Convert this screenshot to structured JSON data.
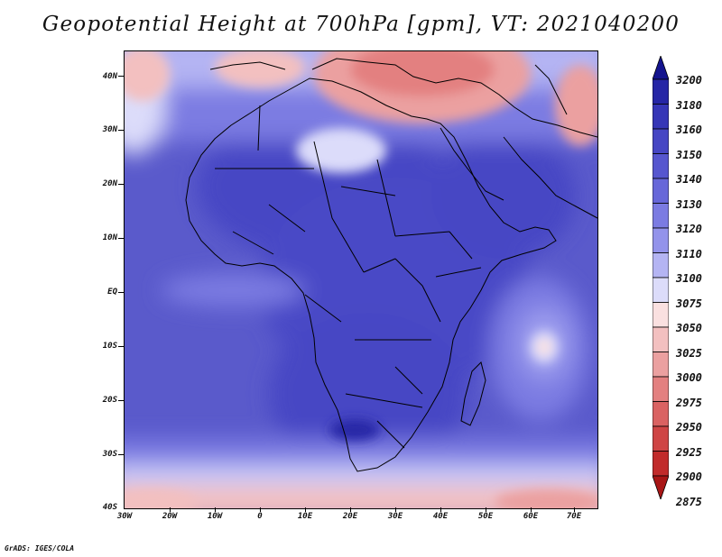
{
  "title": "Geopotential Height at 700hPa [gpm], VT: 2021040200",
  "credit": "GrADS: IGES/COLA",
  "map": {
    "lat_labels": [
      "40N",
      "30N",
      "20N",
      "10N",
      "EQ",
      "10S",
      "20S",
      "30S",
      "40S"
    ],
    "lon_labels": [
      "30W",
      "20W",
      "10W",
      "0",
      "10E",
      "20E",
      "30E",
      "40E",
      "50E",
      "60E",
      "70E"
    ],
    "extent": {
      "lon_min": -30,
      "lon_max": 75,
      "lat_min": -40,
      "lat_max": 44
    }
  },
  "colorbar": {
    "levels": [
      "3200",
      "3180",
      "3160",
      "3150",
      "3140",
      "3130",
      "3120",
      "3110",
      "3100",
      "3075",
      "3050",
      "3025",
      "3000",
      "2975",
      "2950",
      "2925",
      "2900",
      "2875"
    ],
    "colors": [
      "#14148e",
      "#2626a6",
      "#3636b7",
      "#4646c4",
      "#5656cf",
      "#6767d9",
      "#7b7be2",
      "#9393eb",
      "#b4b4f3",
      "#dcdcfa",
      "#fae0e0",
      "#f3c0c0",
      "#eba0a0",
      "#e38080",
      "#da6262",
      "#cf4545",
      "#c12b2b",
      "#a81616"
    ]
  }
}
